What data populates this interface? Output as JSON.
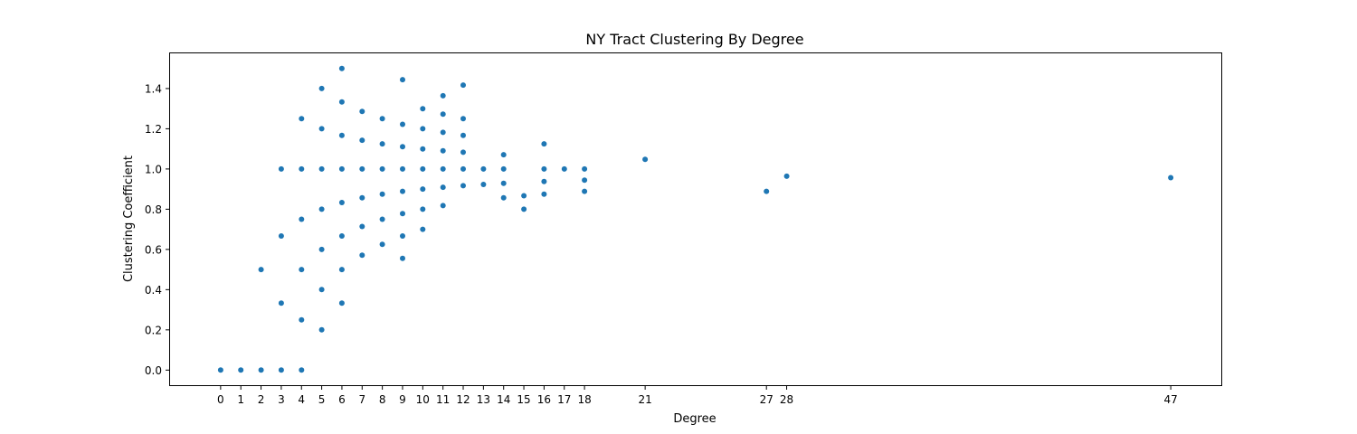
{
  "chart_data": {
    "type": "scatter",
    "title": "NY Tract Clustering By Degree",
    "xlabel": "Degree",
    "ylabel": "Clustering Coefficient",
    "xlim": [
      -2.5,
      49.5
    ],
    "ylim": [
      -0.075,
      1.575
    ],
    "xticks": [
      0,
      1,
      2,
      3,
      4,
      5,
      6,
      7,
      8,
      9,
      10,
      11,
      12,
      13,
      14,
      15,
      16,
      17,
      18,
      21,
      27,
      28,
      47
    ],
    "yticks": [
      0.0,
      0.2,
      0.4,
      0.6,
      0.8,
      1.0,
      1.2,
      1.4
    ],
    "ytick_labels": [
      "0.0",
      "0.2",
      "0.4",
      "0.6",
      "0.8",
      "1.0",
      "1.2",
      "1.4"
    ],
    "grid": false,
    "marker_color": "#1f77b4",
    "series": [
      {
        "points": [
          [
            0,
            0.0
          ],
          [
            1,
            0.0
          ],
          [
            2,
            0.0
          ],
          [
            2,
            0.5
          ],
          [
            3,
            0.0
          ],
          [
            3,
            0.333
          ],
          [
            3,
            0.667
          ],
          [
            3,
            1.0
          ],
          [
            4,
            0.0
          ],
          [
            4,
            0.25
          ],
          [
            4,
            0.5
          ],
          [
            4,
            0.75
          ],
          [
            4,
            1.0
          ],
          [
            4,
            1.25
          ],
          [
            5,
            0.2
          ],
          [
            5,
            0.4
          ],
          [
            5,
            0.6
          ],
          [
            5,
            0.8
          ],
          [
            5,
            1.0
          ],
          [
            5,
            1.2
          ],
          [
            5,
            1.4
          ],
          [
            6,
            0.333
          ],
          [
            6,
            0.5
          ],
          [
            6,
            0.667
          ],
          [
            6,
            0.833
          ],
          [
            6,
            1.0
          ],
          [
            6,
            1.167
          ],
          [
            6,
            1.333
          ],
          [
            6,
            1.5
          ],
          [
            7,
            0.571
          ],
          [
            7,
            0.714
          ],
          [
            7,
            0.857
          ],
          [
            7,
            1.0
          ],
          [
            7,
            1.143
          ],
          [
            7,
            1.286
          ],
          [
            8,
            0.625
          ],
          [
            8,
            0.75
          ],
          [
            8,
            0.875
          ],
          [
            8,
            1.0
          ],
          [
            8,
            1.125
          ],
          [
            8,
            1.25
          ],
          [
            9,
            0.556
          ],
          [
            9,
            0.667
          ],
          [
            9,
            0.778
          ],
          [
            9,
            0.889
          ],
          [
            9,
            1.0
          ],
          [
            9,
            1.111
          ],
          [
            9,
            1.222
          ],
          [
            9,
            1.444
          ],
          [
            10,
            0.7
          ],
          [
            10,
            0.8
          ],
          [
            10,
            0.9
          ],
          [
            10,
            1.0
          ],
          [
            10,
            1.1
          ],
          [
            10,
            1.2
          ],
          [
            10,
            1.3
          ],
          [
            11,
            0.818
          ],
          [
            11,
            0.909
          ],
          [
            11,
            1.0
          ],
          [
            11,
            1.091
          ],
          [
            11,
            1.182
          ],
          [
            11,
            1.273
          ],
          [
            11,
            1.364
          ],
          [
            12,
            0.917
          ],
          [
            12,
            1.0
          ],
          [
            12,
            1.083
          ],
          [
            12,
            1.167
          ],
          [
            12,
            1.25
          ],
          [
            12,
            1.417
          ],
          [
            13,
            0.923
          ],
          [
            13,
            1.0
          ],
          [
            14,
            0.857
          ],
          [
            14,
            0.929
          ],
          [
            14,
            1.0
          ],
          [
            14,
            1.071
          ],
          [
            15,
            0.8
          ],
          [
            15,
            0.867
          ],
          [
            16,
            0.875
          ],
          [
            16,
            0.938
          ],
          [
            16,
            1.0
          ],
          [
            16,
            1.125
          ],
          [
            17,
            1.0
          ],
          [
            18,
            0.889
          ],
          [
            18,
            0.944
          ],
          [
            18,
            1.0
          ],
          [
            21,
            1.048
          ],
          [
            27,
            0.889
          ],
          [
            28,
            0.964
          ],
          [
            47,
            0.957
          ]
        ]
      }
    ]
  }
}
